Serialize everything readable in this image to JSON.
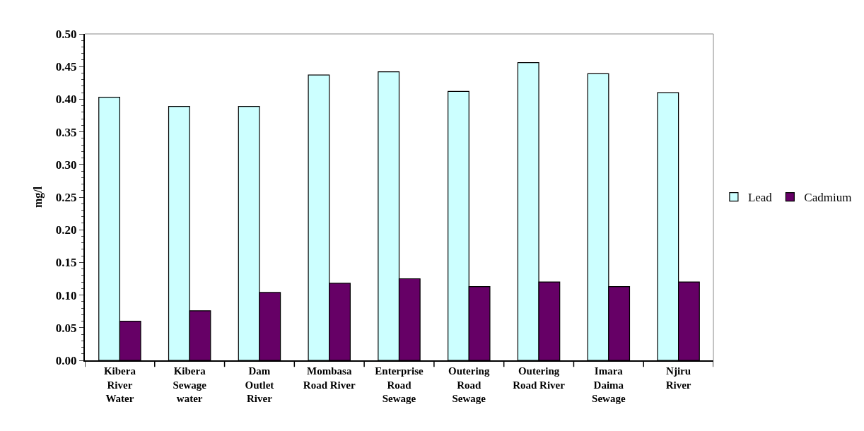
{
  "chart_data": {
    "type": "bar",
    "ylabel": "mg/l",
    "categories": [
      "Kibera\nRiver\nWater",
      "Kibera\nSewage\nwater",
      "Dam\nOutlet\nRiver",
      "Mombasa\nRoad River",
      "Enterprise\nRoad\nSewage",
      "Outering\nRoad\nSewage",
      "Outering\nRoad River",
      "Imara\nDaima\nSewage",
      "Njiru\nRiver"
    ],
    "series": [
      {
        "name": "Lead",
        "color": "#ccffff",
        "values": [
          0.403,
          0.389,
          0.389,
          0.437,
          0.442,
          0.412,
          0.456,
          0.439,
          0.41
        ]
      },
      {
        "name": "Cadmium",
        "color": "#660066",
        "values": [
          0.06,
          0.076,
          0.104,
          0.118,
          0.125,
          0.113,
          0.12,
          0.113,
          0.12
        ]
      }
    ],
    "ylim": [
      0,
      0.5
    ],
    "yticks": [
      {
        "value": 0,
        "label": "0.00"
      },
      {
        "value": 0.05,
        "label": "0.05"
      },
      {
        "value": 0.1,
        "label": "0.10"
      },
      {
        "value": 0.15,
        "label": "0.15"
      },
      {
        "value": 0.2,
        "label": "0.20"
      },
      {
        "value": 0.25,
        "label": "0.25"
      },
      {
        "value": 0.3,
        "label": "0.30"
      },
      {
        "value": 0.35,
        "label": "0.35"
      },
      {
        "value": 0.4,
        "label": "0.40"
      },
      {
        "value": 0.45,
        "label": "0.45"
      },
      {
        "value": 0.5,
        "label": "0.50"
      }
    ],
    "grid": false,
    "legend": "right"
  }
}
